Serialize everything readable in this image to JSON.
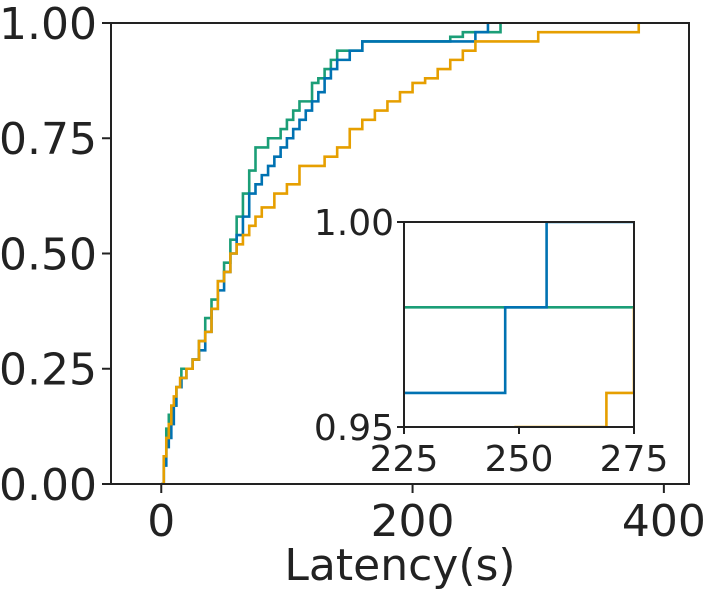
{
  "chart_data": [
    {
      "type": "line",
      "subtype": "step-cdf",
      "title": "",
      "xlabel": "Latency(s)",
      "ylabel": "",
      "xlim": [
        -40,
        420
      ],
      "ylim": [
        0.0,
        1.0
      ],
      "xticks": [
        0,
        200,
        400
      ],
      "xtick_labels": [
        "0",
        "200",
        "400"
      ],
      "yticks": [
        0.0,
        0.25,
        0.5,
        0.75,
        1.0
      ],
      "ytick_labels": [
        "0.00",
        "0.25",
        "0.50",
        "0.75",
        "1.00"
      ],
      "grid": false,
      "legend": "none",
      "series": [
        {
          "name": "green",
          "color": "#1b9e77",
          "x": [
            0,
            2,
            4,
            6,
            8,
            10,
            12,
            14,
            16,
            20,
            25,
            30,
            35,
            40,
            45,
            50,
            55,
            60,
            65,
            70,
            75,
            80,
            85,
            90,
            95,
            100,
            105,
            110,
            115,
            120,
            125,
            130,
            135,
            140,
            150,
            160,
            170,
            180,
            190,
            200,
            210,
            220,
            230,
            240,
            250,
            260,
            270
          ],
          "y": [
            0.0,
            0.06,
            0.12,
            0.15,
            0.17,
            0.17,
            0.21,
            0.21,
            0.25,
            0.25,
            0.27,
            0.31,
            0.36,
            0.4,
            0.44,
            0.48,
            0.53,
            0.58,
            0.63,
            0.68,
            0.73,
            0.73,
            0.75,
            0.75,
            0.77,
            0.79,
            0.81,
            0.83,
            0.83,
            0.87,
            0.88,
            0.9,
            0.92,
            0.94,
            0.94,
            0.96,
            0.96,
            0.96,
            0.96,
            0.96,
            0.96,
            0.96,
            0.97,
            0.98,
            0.98,
            0.98,
            1.0
          ]
        },
        {
          "name": "blue",
          "color": "#0072b2",
          "x": [
            0,
            2,
            4,
            6,
            8,
            10,
            12,
            14,
            16,
            20,
            25,
            30,
            35,
            40,
            45,
            50,
            55,
            60,
            65,
            70,
            75,
            80,
            85,
            90,
            95,
            100,
            105,
            110,
            115,
            120,
            125,
            130,
            135,
            140,
            150,
            160,
            170,
            180,
            190,
            200,
            210,
            220,
            230,
            240,
            250,
            260
          ],
          "y": [
            0.0,
            0.04,
            0.08,
            0.1,
            0.13,
            0.17,
            0.21,
            0.21,
            0.23,
            0.25,
            0.27,
            0.29,
            0.33,
            0.38,
            0.42,
            0.46,
            0.5,
            0.54,
            0.58,
            0.63,
            0.65,
            0.67,
            0.69,
            0.71,
            0.73,
            0.75,
            0.77,
            0.79,
            0.81,
            0.83,
            0.85,
            0.88,
            0.9,
            0.92,
            0.94,
            0.96,
            0.96,
            0.96,
            0.96,
            0.96,
            0.96,
            0.96,
            0.96,
            0.96,
            0.98,
            1.0
          ]
        },
        {
          "name": "orange",
          "color": "#e69f00",
          "x": [
            0,
            2,
            4,
            6,
            8,
            10,
            12,
            15,
            20,
            25,
            30,
            35,
            40,
            45,
            50,
            55,
            60,
            65,
            70,
            75,
            80,
            90,
            100,
            110,
            120,
            130,
            140,
            150,
            160,
            170,
            180,
            190,
            200,
            210,
            220,
            230,
            240,
            250,
            270,
            300,
            330,
            360,
            380
          ],
          "y": [
            0.0,
            0.06,
            0.1,
            0.13,
            0.17,
            0.19,
            0.21,
            0.23,
            0.25,
            0.27,
            0.31,
            0.33,
            0.38,
            0.44,
            0.46,
            0.5,
            0.52,
            0.54,
            0.56,
            0.58,
            0.6,
            0.63,
            0.65,
            0.69,
            0.69,
            0.71,
            0.73,
            0.77,
            0.79,
            0.81,
            0.83,
            0.85,
            0.87,
            0.88,
            0.9,
            0.92,
            0.94,
            0.96,
            0.96,
            0.98,
            0.98,
            0.98,
            1.0
          ]
        }
      ]
    },
    {
      "type": "line",
      "subtype": "step-cdf",
      "role": "inset",
      "title": "",
      "xlabel": "",
      "ylabel": "",
      "xlim": [
        225,
        275
      ],
      "ylim": [
        0.95,
        1.0
      ],
      "xticks": [
        225,
        250,
        275
      ],
      "xtick_labels": [
        "225",
        "250",
        "275"
      ],
      "yticks": [
        0.95,
        1.0
      ],
      "ytick_labels": [
        "0.95",
        "1.00"
      ],
      "grid": false,
      "legend": "none",
      "series": [
        {
          "name": "green",
          "color": "#1b9e77",
          "x": [
            225,
            275
          ],
          "y": [
            0.9792,
            0.9792
          ]
        },
        {
          "name": "blue",
          "color": "#0072b2",
          "x": [
            225,
            247,
            256
          ],
          "y": [
            0.9583,
            0.9792,
            1.0
          ]
        },
        {
          "name": "orange",
          "color": "#e69f00",
          "x": [
            249,
            269,
            275
          ],
          "y": [
            0.95,
            0.9583,
            0.9792
          ]
        }
      ]
    }
  ]
}
